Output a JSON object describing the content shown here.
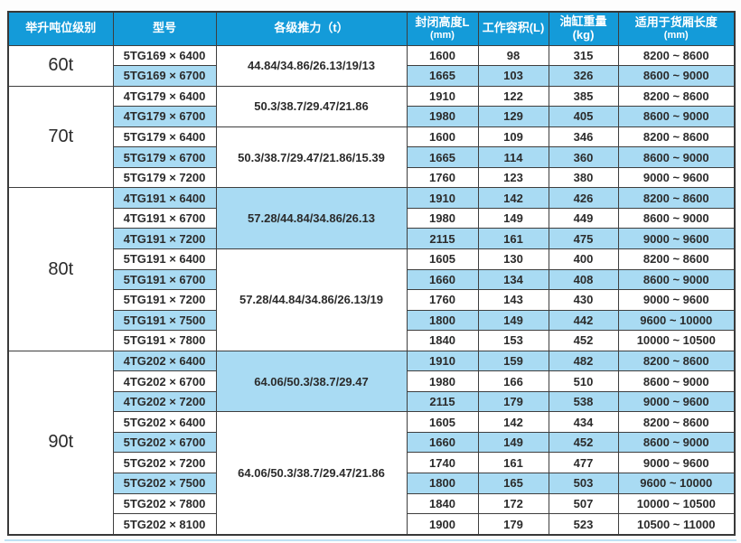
{
  "colors": {
    "header_bg": "#149bd9",
    "stripe_bg": "#a9dbf3",
    "border": "#3e3e3e",
    "header_text": "#ffffff",
    "cell_text": "#2b2b2b",
    "bottom_accent": "#bfe2f4"
  },
  "table": {
    "columns": [
      {
        "label": "举升吨位级别",
        "sub": ""
      },
      {
        "label": "型号",
        "sub": ""
      },
      {
        "label": "各级推力（t）",
        "sub": ""
      },
      {
        "label": "封闭高度L",
        "sub": "(mm)"
      },
      {
        "label": "工作容积(L)",
        "sub": ""
      },
      {
        "label": "油缸重量(kg)",
        "sub": ""
      },
      {
        "label": "适用于货厢长度",
        "sub": "(mm)"
      }
    ],
    "groups": [
      {
        "tonnage": "60t",
        "subgroups": [
          {
            "thrust": "44.84/34.86/26.13/19/13",
            "thrust_blue": false,
            "rows": [
              {
                "model": "5TG169 × 6400",
                "closed_height": "1600",
                "volume": "98",
                "weight": "315",
                "cargo": "8200 ~ 8600",
                "blue": false
              },
              {
                "model": "5TG169 × 6700",
                "closed_height": "1665",
                "volume": "103",
                "weight": "326",
                "cargo": "8600 ~ 9000",
                "blue": true
              }
            ]
          }
        ]
      },
      {
        "tonnage": "70t",
        "subgroups": [
          {
            "thrust": "50.3/38.7/29.47/21.86",
            "thrust_blue": false,
            "rows": [
              {
                "model": "4TG179 × 6400",
                "closed_height": "1910",
                "volume": "122",
                "weight": "385",
                "cargo": "8200 ~ 8600",
                "blue": false
              },
              {
                "model": "4TG179 × 6700",
                "closed_height": "1980",
                "volume": "129",
                "weight": "405",
                "cargo": "8600 ~ 9000",
                "blue": true
              }
            ]
          },
          {
            "thrust": "50.3/38.7/29.47/21.86/15.39",
            "thrust_blue": false,
            "rows": [
              {
                "model": "5TG179 × 6400",
                "closed_height": "1600",
                "volume": "109",
                "weight": "346",
                "cargo": "8200 ~ 8600",
                "blue": false
              },
              {
                "model": "5TG179 × 6700",
                "closed_height": "1665",
                "volume": "114",
                "weight": "360",
                "cargo": "8600 ~ 9000",
                "blue": true
              },
              {
                "model": "5TG179 × 7200",
                "closed_height": "1760",
                "volume": "123",
                "weight": "380",
                "cargo": "9000 ~ 9600",
                "blue": false
              }
            ]
          }
        ]
      },
      {
        "tonnage": "80t",
        "subgroups": [
          {
            "thrust": "57.28/44.84/34.86/26.13",
            "thrust_blue": true,
            "rows": [
              {
                "model": "4TG191 × 6400",
                "closed_height": "1910",
                "volume": "142",
                "weight": "426",
                "cargo": "8200 ~ 8600",
                "blue": true
              },
              {
                "model": "4TG191 × 6700",
                "closed_height": "1980",
                "volume": "149",
                "weight": "449",
                "cargo": "8600 ~ 9000",
                "blue": false
              },
              {
                "model": "4TG191 × 7200",
                "closed_height": "2115",
                "volume": "161",
                "weight": "475",
                "cargo": "9000 ~ 9600",
                "blue": true
              }
            ]
          },
          {
            "thrust": "57.28/44.84/34.86/26.13/19",
            "thrust_blue": false,
            "rows": [
              {
                "model": "5TG191 × 6400",
                "closed_height": "1605",
                "volume": "130",
                "weight": "400",
                "cargo": "8200 ~ 8600",
                "blue": false
              },
              {
                "model": "5TG191 × 6700",
                "closed_height": "1660",
                "volume": "134",
                "weight": "408",
                "cargo": "8600 ~ 9000",
                "blue": true
              },
              {
                "model": "5TG191 × 7200",
                "closed_height": "1760",
                "volume": "143",
                "weight": "430",
                "cargo": "9000 ~ 9600",
                "blue": false
              },
              {
                "model": "5TG191 × 7500",
                "closed_height": "1800",
                "volume": "149",
                "weight": "442",
                "cargo": "9600 ~ 10000",
                "blue": true
              },
              {
                "model": "5TG191 × 7800",
                "closed_height": "1840",
                "volume": "153",
                "weight": "452",
                "cargo": "10000 ~ 10500",
                "blue": false
              }
            ]
          }
        ]
      },
      {
        "tonnage": "90t",
        "subgroups": [
          {
            "thrust": "64.06/50.3/38.7/29.47",
            "thrust_blue": true,
            "rows": [
              {
                "model": "4TG202 × 6400",
                "closed_height": "1910",
                "volume": "159",
                "weight": "482",
                "cargo": "8200 ~ 8600",
                "blue": true
              },
              {
                "model": "4TG202 × 6700",
                "closed_height": "1980",
                "volume": "166",
                "weight": "510",
                "cargo": "8600 ~ 9000",
                "blue": false
              },
              {
                "model": "4TG202 × 7200",
                "closed_height": "2115",
                "volume": "179",
                "weight": "538",
                "cargo": "9000 ~ 9600",
                "blue": true
              }
            ]
          },
          {
            "thrust": "64.06/50.3/38.7/29.47/21.86",
            "thrust_blue": false,
            "rows": [
              {
                "model": "5TG202 × 6400",
                "closed_height": "1605",
                "volume": "142",
                "weight": "434",
                "cargo": "8200 ~ 8600",
                "blue": false
              },
              {
                "model": "5TG202 × 6700",
                "closed_height": "1660",
                "volume": "149",
                "weight": "452",
                "cargo": "8600 ~ 9000",
                "blue": true
              },
              {
                "model": "5TG202 × 7200",
                "closed_height": "1740",
                "volume": "161",
                "weight": "477",
                "cargo": "9000 ~ 9600",
                "blue": false
              },
              {
                "model": "5TG202 × 7500",
                "closed_height": "1800",
                "volume": "165",
                "weight": "503",
                "cargo": "9600 ~ 10000",
                "blue": true
              },
              {
                "model": "5TG202 × 7800",
                "closed_height": "1840",
                "volume": "172",
                "weight": "507",
                "cargo": "10000 ~ 10500",
                "blue": false
              },
              {
                "model": "5TG202 × 8100",
                "closed_height": "1900",
                "volume": "179",
                "weight": "523",
                "cargo": "10500 ~ 11000",
                "blue": false
              }
            ]
          }
        ]
      }
    ]
  }
}
